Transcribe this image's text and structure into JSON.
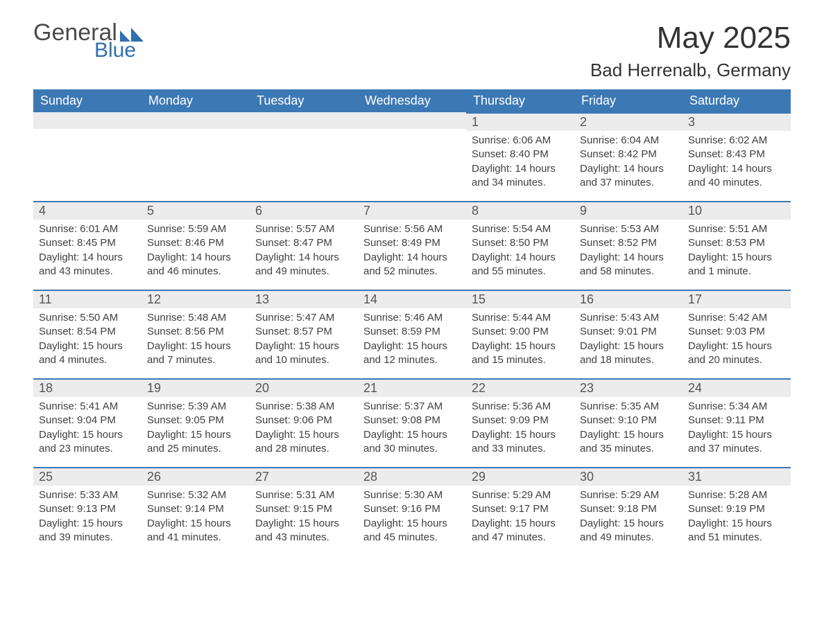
{
  "logo": {
    "part1": "General",
    "part2": "Blue",
    "tri_color": "#2f6fb0"
  },
  "header": {
    "month_title": "May 2025",
    "location": "Bad Herrenalb, Germany"
  },
  "colors": {
    "header_bg": "#3c78b4",
    "header_fg": "#ffffff",
    "daynum_bg": "#ececec",
    "daynum_border": "#3c78b4",
    "text": "#3f3f3f",
    "page_bg": "#ffffff"
  },
  "weekdays": [
    "Sunday",
    "Monday",
    "Tuesday",
    "Wednesday",
    "Thursday",
    "Friday",
    "Saturday"
  ],
  "weeks": [
    [
      null,
      null,
      null,
      null,
      {
        "n": "1",
        "sunrise": "6:06 AM",
        "sunset": "8:40 PM",
        "daylight": "14 hours and 34 minutes."
      },
      {
        "n": "2",
        "sunrise": "6:04 AM",
        "sunset": "8:42 PM",
        "daylight": "14 hours and 37 minutes."
      },
      {
        "n": "3",
        "sunrise": "6:02 AM",
        "sunset": "8:43 PM",
        "daylight": "14 hours and 40 minutes."
      }
    ],
    [
      {
        "n": "4",
        "sunrise": "6:01 AM",
        "sunset": "8:45 PM",
        "daylight": "14 hours and 43 minutes."
      },
      {
        "n": "5",
        "sunrise": "5:59 AM",
        "sunset": "8:46 PM",
        "daylight": "14 hours and 46 minutes."
      },
      {
        "n": "6",
        "sunrise": "5:57 AM",
        "sunset": "8:47 PM",
        "daylight": "14 hours and 49 minutes."
      },
      {
        "n": "7",
        "sunrise": "5:56 AM",
        "sunset": "8:49 PM",
        "daylight": "14 hours and 52 minutes."
      },
      {
        "n": "8",
        "sunrise": "5:54 AM",
        "sunset": "8:50 PM",
        "daylight": "14 hours and 55 minutes."
      },
      {
        "n": "9",
        "sunrise": "5:53 AM",
        "sunset": "8:52 PM",
        "daylight": "14 hours and 58 minutes."
      },
      {
        "n": "10",
        "sunrise": "5:51 AM",
        "sunset": "8:53 PM",
        "daylight": "15 hours and 1 minute."
      }
    ],
    [
      {
        "n": "11",
        "sunrise": "5:50 AM",
        "sunset": "8:54 PM",
        "daylight": "15 hours and 4 minutes."
      },
      {
        "n": "12",
        "sunrise": "5:48 AM",
        "sunset": "8:56 PM",
        "daylight": "15 hours and 7 minutes."
      },
      {
        "n": "13",
        "sunrise": "5:47 AM",
        "sunset": "8:57 PM",
        "daylight": "15 hours and 10 minutes."
      },
      {
        "n": "14",
        "sunrise": "5:46 AM",
        "sunset": "8:59 PM",
        "daylight": "15 hours and 12 minutes."
      },
      {
        "n": "15",
        "sunrise": "5:44 AM",
        "sunset": "9:00 PM",
        "daylight": "15 hours and 15 minutes."
      },
      {
        "n": "16",
        "sunrise": "5:43 AM",
        "sunset": "9:01 PM",
        "daylight": "15 hours and 18 minutes."
      },
      {
        "n": "17",
        "sunrise": "5:42 AM",
        "sunset": "9:03 PM",
        "daylight": "15 hours and 20 minutes."
      }
    ],
    [
      {
        "n": "18",
        "sunrise": "5:41 AM",
        "sunset": "9:04 PM",
        "daylight": "15 hours and 23 minutes."
      },
      {
        "n": "19",
        "sunrise": "5:39 AM",
        "sunset": "9:05 PM",
        "daylight": "15 hours and 25 minutes."
      },
      {
        "n": "20",
        "sunrise": "5:38 AM",
        "sunset": "9:06 PM",
        "daylight": "15 hours and 28 minutes."
      },
      {
        "n": "21",
        "sunrise": "5:37 AM",
        "sunset": "9:08 PM",
        "daylight": "15 hours and 30 minutes."
      },
      {
        "n": "22",
        "sunrise": "5:36 AM",
        "sunset": "9:09 PM",
        "daylight": "15 hours and 33 minutes."
      },
      {
        "n": "23",
        "sunrise": "5:35 AM",
        "sunset": "9:10 PM",
        "daylight": "15 hours and 35 minutes."
      },
      {
        "n": "24",
        "sunrise": "5:34 AM",
        "sunset": "9:11 PM",
        "daylight": "15 hours and 37 minutes."
      }
    ],
    [
      {
        "n": "25",
        "sunrise": "5:33 AM",
        "sunset": "9:13 PM",
        "daylight": "15 hours and 39 minutes."
      },
      {
        "n": "26",
        "sunrise": "5:32 AM",
        "sunset": "9:14 PM",
        "daylight": "15 hours and 41 minutes."
      },
      {
        "n": "27",
        "sunrise": "5:31 AM",
        "sunset": "9:15 PM",
        "daylight": "15 hours and 43 minutes."
      },
      {
        "n": "28",
        "sunrise": "5:30 AM",
        "sunset": "9:16 PM",
        "daylight": "15 hours and 45 minutes."
      },
      {
        "n": "29",
        "sunrise": "5:29 AM",
        "sunset": "9:17 PM",
        "daylight": "15 hours and 47 minutes."
      },
      {
        "n": "30",
        "sunrise": "5:29 AM",
        "sunset": "9:18 PM",
        "daylight": "15 hours and 49 minutes."
      },
      {
        "n": "31",
        "sunrise": "5:28 AM",
        "sunset": "9:19 PM",
        "daylight": "15 hours and 51 minutes."
      }
    ]
  ],
  "labels": {
    "sunrise": "Sunrise:",
    "sunset": "Sunset:",
    "daylight": "Daylight:"
  }
}
